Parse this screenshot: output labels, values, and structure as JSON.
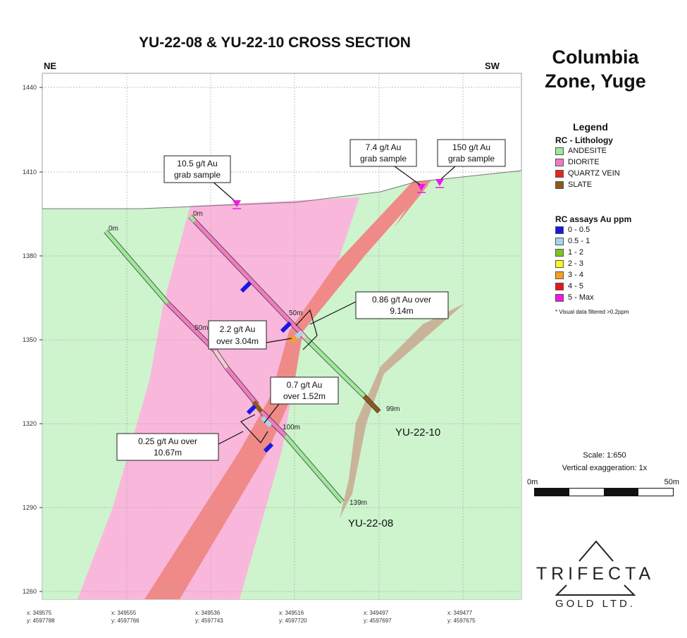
{
  "title": "YU-22-08 & YU-22-10 CROSS SECTION",
  "direction_left": "NE",
  "direction_right": "SW",
  "zone_title_line1": "Columbia",
  "zone_title_line2": "Zone, Yuge",
  "axis": {
    "elevations": [
      "1440",
      "1410",
      "1380",
      "1350",
      "1320",
      "1290",
      "1260"
    ],
    "eastings": [
      {
        "x": "x: 349575",
        "y": "y: 4597788"
      },
      {
        "x": "x: 349555",
        "y": "y: 4597766"
      },
      {
        "x": "x: 349536",
        "y": "y: 4597743"
      },
      {
        "x": "x: 349516",
        "y": "y: 4597720"
      },
      {
        "x": "x: 349497",
        "y": "y: 4597697"
      },
      {
        "x": "x: 349477",
        "y": "y: 4597675"
      }
    ]
  },
  "legend": {
    "heading": "Legend",
    "lithology_title": "RC - Lithology",
    "lithology": [
      {
        "label": "ANDESITE",
        "color": "#9de89a"
      },
      {
        "label": "DIORITE",
        "color": "#f07bc0"
      },
      {
        "label": "QUARTZ VEIN",
        "color": "#e8261c"
      },
      {
        "label": "SLATE",
        "color": "#8b5a1a"
      }
    ],
    "assays_title": "RC assays Au ppm",
    "assays": [
      {
        "label": "0 - 0.5",
        "color": "#1818e0"
      },
      {
        "label": "0.5 - 1",
        "color": "#a8d4e8"
      },
      {
        "label": "1 - 2",
        "color": "#78c81e"
      },
      {
        "label": "2 - 3",
        "color": "#f8f81c"
      },
      {
        "label": "3 - 4",
        "color": "#f8a01c"
      },
      {
        "label": "4 - 5",
        "color": "#e8141c"
      },
      {
        "label": "5 - Max",
        "color": "#f018e8"
      }
    ],
    "note": "* Visual data filtered >0.2ppm"
  },
  "scale": {
    "ratio": "Scale: 1:650",
    "exaggeration": "Vertical exaggeration: 1x",
    "start": "0m",
    "end": "50m"
  },
  "callouts": {
    "grab1_line1": "10.5 g/t Au",
    "grab1_line2": "grab sample",
    "grab2_line1": "7.4 g/t Au",
    "grab2_line2": "grab sample",
    "grab3_line1": "150 g/t Au",
    "grab3_line2": "grab sample",
    "c086_line1": "0.86 g/t Au over",
    "c086_line2": "9.14m",
    "c22_line1": "2.2 g/t Au",
    "c22_line2": "over 3.04m",
    "c07_line1": "0.7 g/t Au",
    "c07_line2": "over 1.52m",
    "c025_line1": "0.25 g/t Au over",
    "c025_line2": "10.67m"
  },
  "holes": {
    "h08_name": "YU-22-08",
    "h10_name": "YU-22-10",
    "h08_0m": "0m",
    "h08_50m": "50m",
    "h08_100m": "100m",
    "h08_139m": "139m",
    "h10_0m": "0m",
    "h10_50m": "50m",
    "h10_99m": "99m"
  },
  "logo": {
    "line1": "TRIFECTA",
    "line2": "GOLD LTD."
  }
}
